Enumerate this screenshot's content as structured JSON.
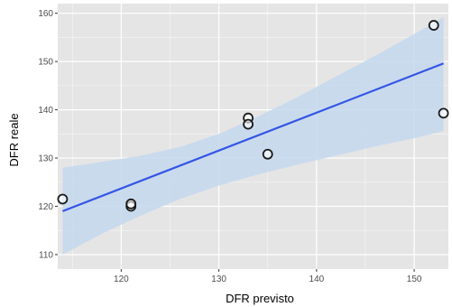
{
  "chart_data": {
    "type": "scatter",
    "title": "",
    "xlabel": "DFR previsto",
    "ylabel": "DFR reale",
    "xlim": [
      113.5,
      153.5
    ],
    "ylim": [
      107,
      162
    ],
    "x_ticks": [
      120,
      130,
      140,
      150
    ],
    "y_ticks": [
      110,
      120,
      130,
      140,
      150,
      160
    ],
    "grid": true,
    "points": [
      {
        "x": 114,
        "y": 121.5
      },
      {
        "x": 121,
        "y": 120.0
      },
      {
        "x": 121,
        "y": 120.5
      },
      {
        "x": 133,
        "y": 138.3
      },
      {
        "x": 133,
        "y": 137.0
      },
      {
        "x": 135,
        "y": 130.8
      },
      {
        "x": 152,
        "y": 157.5
      },
      {
        "x": 153,
        "y": 139.3
      }
    ],
    "regression": {
      "method": "linear",
      "x": [
        114,
        153
      ],
      "y": [
        119.0,
        149.6
      ]
    },
    "confidence_band": {
      "x": [
        114,
        118,
        122,
        126,
        130,
        134,
        138,
        142,
        146,
        150,
        153
      ],
      "upper": [
        128.0,
        129.2,
        130.5,
        132.3,
        135.0,
        138.6,
        142.6,
        146.9,
        151.2,
        155.7,
        159.2
      ],
      "lower": [
        110.0,
        114.3,
        118.1,
        121.5,
        124.3,
        126.6,
        128.6,
        130.5,
        132.4,
        134.1,
        135.6
      ]
    },
    "colors": {
      "panel": "#e5e5e5",
      "grid_major": "#ffffff",
      "line": "#3355e6",
      "band": "#c6d8ee",
      "point_fill": "#ffffff",
      "point_stroke": "#1a1a1a"
    }
  }
}
